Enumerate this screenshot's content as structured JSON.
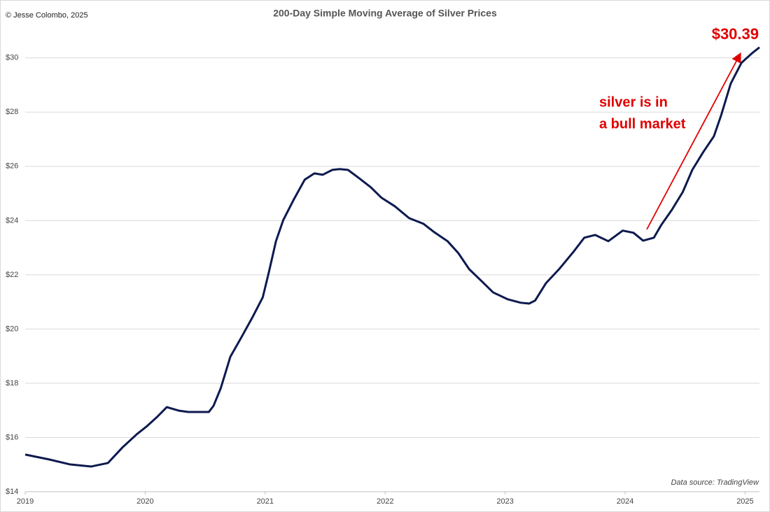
{
  "chart_data": {
    "type": "line",
    "title": "200-Day Simple Moving Average of Silver Prices",
    "copyright": "© Jesse Colombo, 2025",
    "source": "Data source: TradingView",
    "annotations": [
      "$30.39",
      "silver is in",
      "a bull market"
    ],
    "x": [
      2019.0,
      2019.2,
      2019.37,
      2019.55,
      2019.69,
      2019.81,
      2019.93,
      2020.01,
      2020.1,
      2020.18,
      2020.28,
      2020.36,
      2020.45,
      2020.53,
      2020.57,
      2020.63,
      2020.71,
      2020.8,
      2020.89,
      2020.98,
      2021.03,
      2021.09,
      2021.15,
      2021.24,
      2021.33,
      2021.41,
      2021.48,
      2021.56,
      2021.62,
      2021.69,
      2021.79,
      2021.88,
      2021.97,
      2022.08,
      2022.2,
      2022.32,
      2022.41,
      2022.52,
      2022.61,
      2022.7,
      2022.81,
      2022.9,
      2023.02,
      2023.13,
      2023.2,
      2023.25,
      2023.34,
      2023.45,
      2023.57,
      2023.66,
      2023.75,
      2023.86,
      2023.98,
      2024.07,
      2024.15,
      2024.24,
      2024.3,
      2024.39,
      2024.48,
      2024.56,
      2024.65,
      2024.74,
      2024.8,
      2024.88,
      2024.97,
      2025.06,
      2025.12
    ],
    "series": [
      {
        "name": "200-Day SMA",
        "color": "#0d1a4f",
        "values": [
          15.37,
          15.19,
          15.01,
          14.93,
          15.06,
          15.63,
          16.12,
          16.4,
          16.76,
          17.12,
          16.99,
          16.94,
          16.94,
          16.94,
          17.17,
          17.82,
          18.98,
          19.68,
          20.4,
          21.17,
          22.08,
          23.24,
          24.01,
          24.79,
          25.51,
          25.74,
          25.69,
          25.87,
          25.9,
          25.87,
          25.54,
          25.23,
          24.84,
          24.53,
          24.09,
          23.88,
          23.57,
          23.24,
          22.8,
          22.21,
          21.74,
          21.35,
          21.1,
          20.97,
          20.94,
          21.05,
          21.69,
          22.21,
          22.85,
          23.37,
          23.47,
          23.24,
          23.63,
          23.55,
          23.26,
          23.37,
          23.83,
          24.4,
          25.05,
          25.87,
          26.52,
          27.11,
          27.88,
          29.05,
          29.82,
          30.18,
          30.39
        ]
      }
    ],
    "xlim": [
      2019,
      2025.12
    ],
    "xticks": [
      2019,
      2020,
      2021,
      2022,
      2023,
      2024,
      2025
    ],
    "ylim": [
      14,
      31
    ],
    "yticks": [
      {
        "value": 14,
        "label": "$14"
      },
      {
        "value": 16,
        "label": "$16"
      },
      {
        "value": 18,
        "label": "$18"
      },
      {
        "value": 20,
        "label": "$20"
      },
      {
        "value": 22,
        "label": "$22"
      },
      {
        "value": 24,
        "label": "$24"
      },
      {
        "value": 26,
        "label": "$26"
      },
      {
        "value": 28,
        "label": "$28"
      },
      {
        "value": 30,
        "label": "$30"
      }
    ],
    "grid": true
  }
}
